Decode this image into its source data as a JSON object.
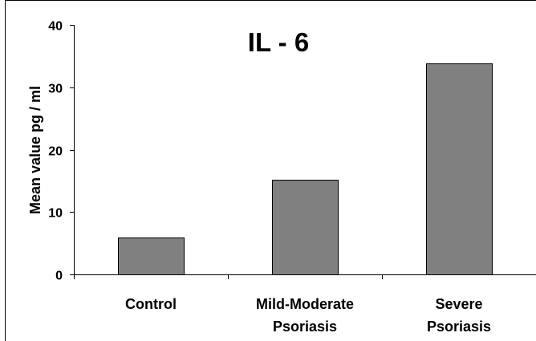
{
  "chart_data": {
    "type": "bar",
    "title": "IL - 6",
    "ylabel": "Mean value pg / ml",
    "xlabel": "",
    "ylim": [
      0,
      40
    ],
    "yticks": [
      0,
      10,
      20,
      30,
      40
    ],
    "grid": false,
    "categories": [
      [
        "Control"
      ],
      [
        "Mild-Moderate",
        "Psoriasis"
      ],
      [
        "Severe",
        "Psoriasis"
      ]
    ],
    "values": [
      5.9,
      15.2,
      33.8
    ],
    "bar_color": "#808080"
  }
}
